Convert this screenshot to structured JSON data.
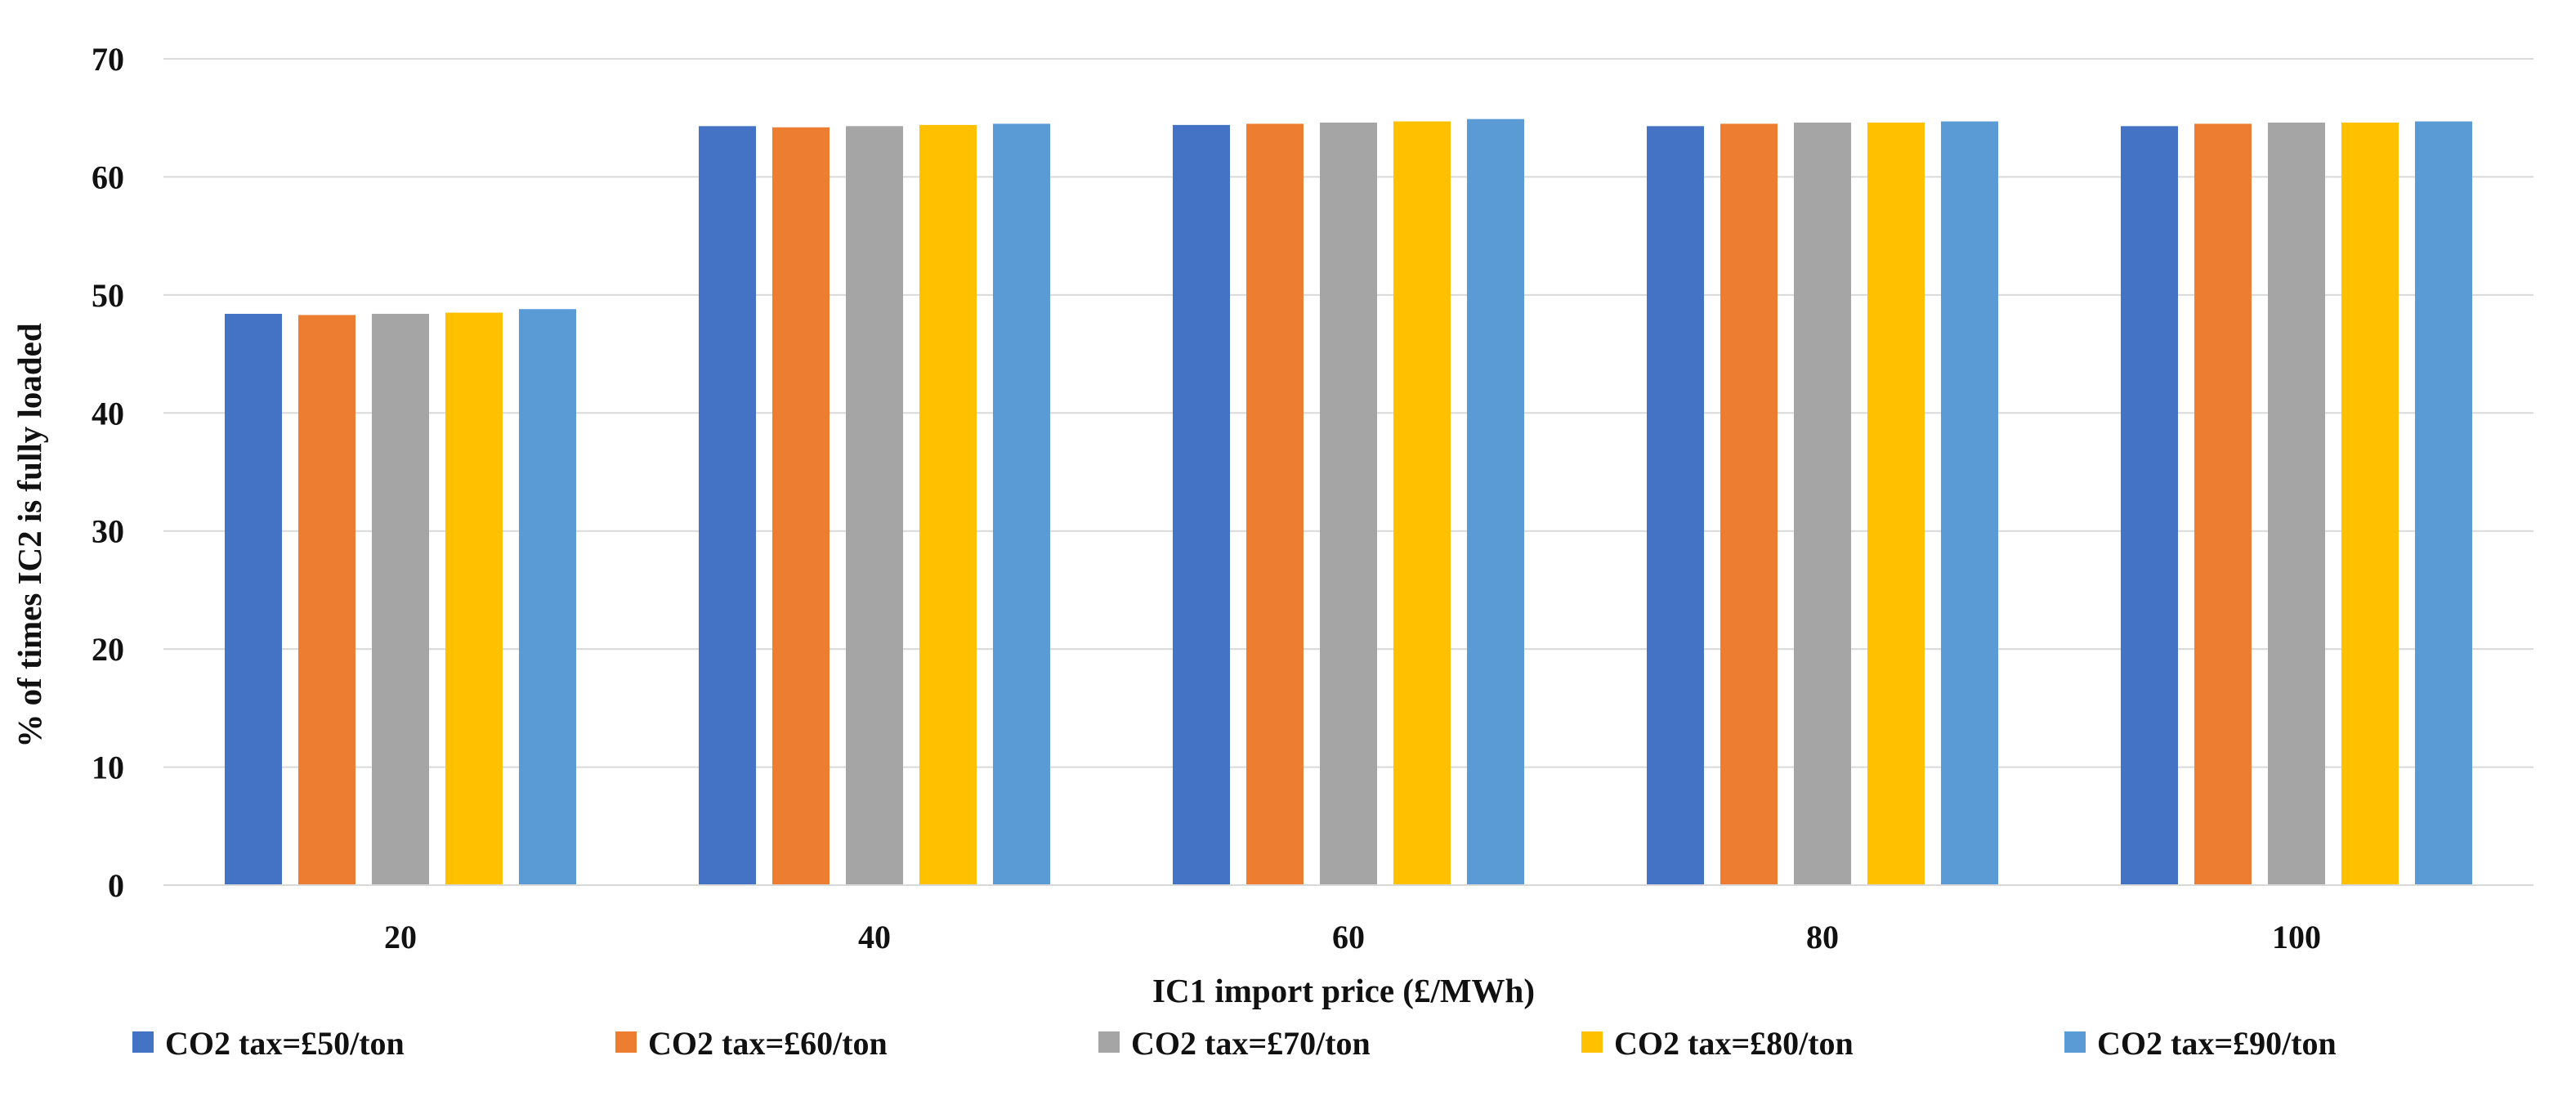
{
  "chart_data": {
    "type": "bar",
    "title": "",
    "xlabel": "IC1 import price  (£/MWh)",
    "ylabel": "% of times IC2 is fully loaded",
    "categories": [
      "20",
      "40",
      "60",
      "80",
      "100"
    ],
    "ylim": [
      0,
      70
    ],
    "yticks": [
      "0",
      "10",
      "20",
      "30",
      "40",
      "50",
      "60",
      "70"
    ],
    "grid": true,
    "legend_position": "bottom",
    "series": [
      {
        "name": "CO2 tax=£50/ton",
        "color": "#4472C4",
        "values": [
          48.4,
          64.3,
          64.4,
          64.3,
          64.3
        ]
      },
      {
        "name": "CO2 tax=£60/ton",
        "color": "#ED7D31",
        "values": [
          48.3,
          64.2,
          64.5,
          64.5,
          64.5
        ]
      },
      {
        "name": "CO2 tax=£70/ton",
        "color": "#A5A5A5",
        "values": [
          48.4,
          64.3,
          64.6,
          64.6,
          64.6
        ]
      },
      {
        "name": "CO2 tax=£80/ton",
        "color": "#FFC000",
        "values": [
          48.5,
          64.4,
          64.7,
          64.6,
          64.6
        ]
      },
      {
        "name": "CO2 tax=£90/ton",
        "color": "#5B9BD5",
        "values": [
          48.8,
          64.5,
          64.9,
          64.7,
          64.7
        ]
      }
    ]
  }
}
